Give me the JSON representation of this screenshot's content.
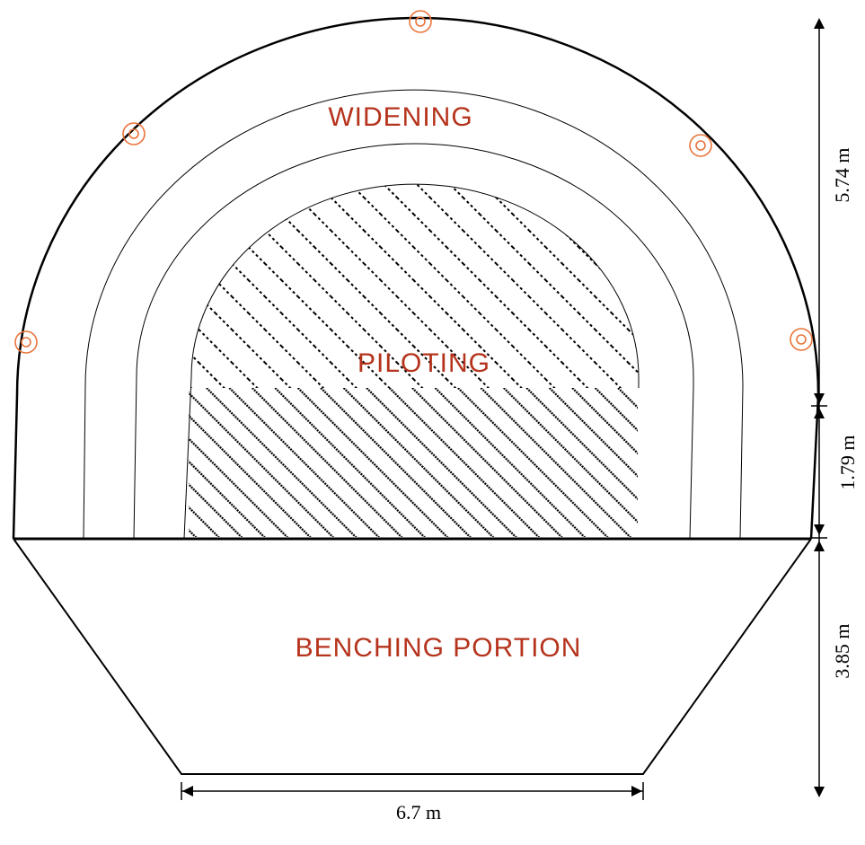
{
  "labels": {
    "widening": "WIDENING",
    "piloting": "PILOTING",
    "benching": "BENCHING PORTION"
  },
  "dimensions": {
    "crown_height": "5.74 m",
    "wall_height": "1.79 m",
    "bench_depth": "3.85 m",
    "bottom_width": "6.7 m"
  },
  "colors": {
    "label_text": "#b5331c",
    "survey_marker": "#e8743a",
    "outline": "#000000"
  },
  "markers": {
    "icon": "concentric-circle-survey-point",
    "count": 5
  }
}
